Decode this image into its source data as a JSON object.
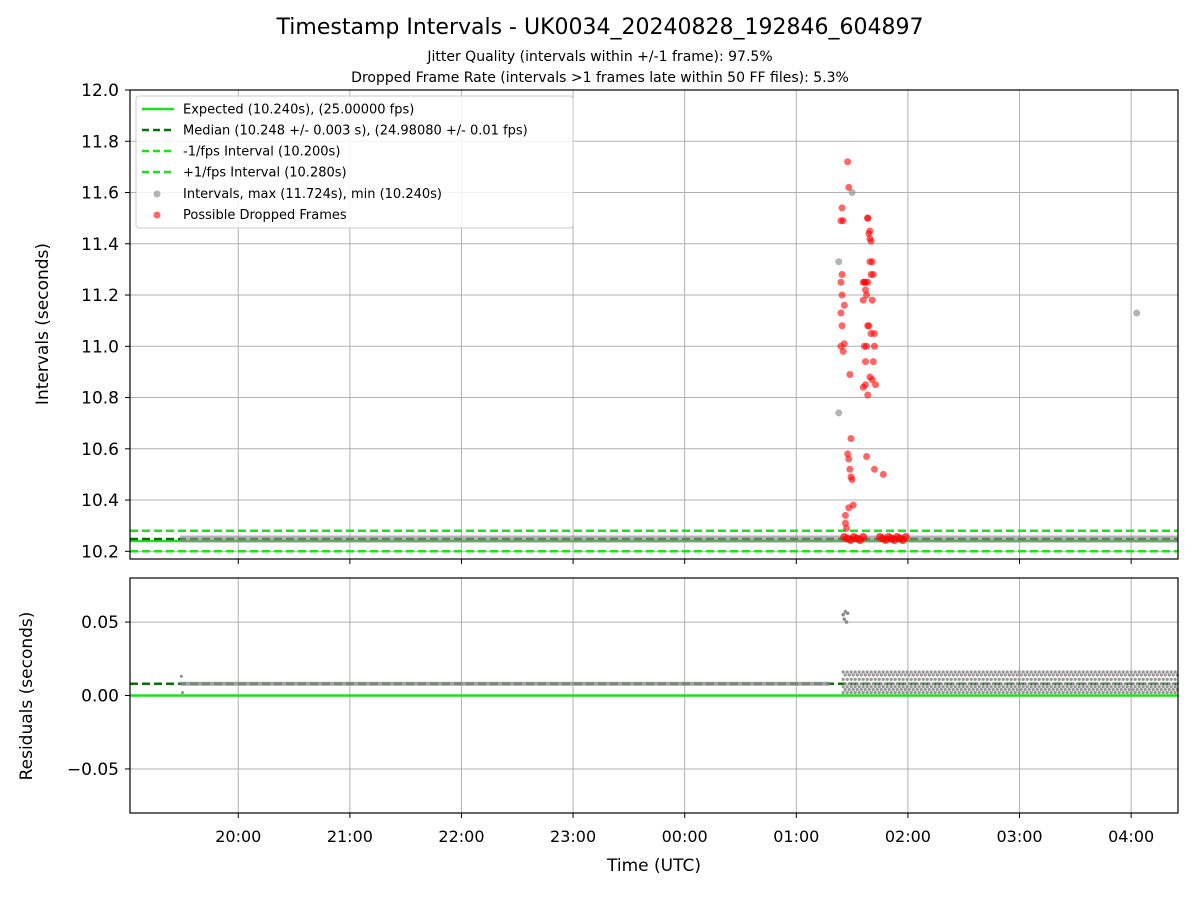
{
  "header": {
    "title": "Timestamp Intervals - UK0034_20240828_192846_604897",
    "subtitle1": "Jitter Quality (intervals within +/-1 frame): 97.5%",
    "subtitle2": "Dropped Frame Rate (intervals >1 frames late within 50 FF files): 5.3%"
  },
  "colors": {
    "expected": "#1ee11e",
    "median": "#0a6e0a",
    "fps_bounds": "#1ee11e",
    "intervals": "#8c8c8c",
    "dropped": "#ff0000",
    "grid": "#b0b0b0"
  },
  "chart_data": [
    {
      "type": "scatter",
      "panel": "intervals",
      "ylabel": "Intervals (seconds)",
      "ylim": [
        10.17,
        12.0
      ],
      "yticks": [
        "12.0",
        "11.8",
        "11.6",
        "11.4",
        "11.2",
        "11.0",
        "10.8",
        "10.6",
        "10.4",
        "10.2"
      ],
      "xlim_hours": [
        19.03,
        28.42
      ],
      "grid": true,
      "legend_position": "upper-left",
      "legend": [
        "Expected (10.240s), (25.00000 fps)",
        "Median (10.248 +/- 0.003 s), (24.98080 +/- 0.01 fps)",
        "-1/fps Interval (10.200s)",
        "+1/fps Interval (10.280s)",
        "Intervals, max (11.724s), min (10.240s)",
        "Possible Dropped Frames"
      ],
      "reference_lines": {
        "expected": 10.24,
        "median": 10.248,
        "minus_one_frame": 10.2,
        "plus_one_frame": 10.28
      },
      "series": [
        {
          "name": "Intervals, max (11.724s), min (10.240s)",
          "baseline": {
            "x_range": [
              19.48,
              28.42
            ],
            "y": 10.248
          },
          "outliers": [
            [
              25.38,
              11.33
            ],
            [
              25.38,
              10.74
            ],
            [
              28.05,
              11.13
            ],
            [
              25.5,
              11.6
            ]
          ]
        },
        {
          "name": "Possible Dropped Frames",
          "points": [
            [
              25.4,
              11.49
            ],
            [
              25.41,
              11.54
            ],
            [
              25.42,
              11.49
            ],
            [
              25.41,
              11.28
            ],
            [
              25.4,
              11.25
            ],
            [
              25.41,
              11.2
            ],
            [
              25.43,
              11.16
            ],
            [
              25.4,
              11.13
            ],
            [
              25.41,
              11.08
            ],
            [
              25.4,
              11.0
            ],
            [
              25.42,
              10.98
            ],
            [
              25.43,
              11.01
            ],
            [
              25.46,
              11.72
            ],
            [
              25.47,
              11.62
            ],
            [
              25.48,
              10.89
            ],
            [
              25.49,
              10.64
            ],
            [
              25.46,
              10.58
            ],
            [
              25.47,
              10.56
            ],
            [
              25.48,
              10.52
            ],
            [
              25.49,
              10.49
            ],
            [
              25.5,
              10.48
            ],
            [
              25.51,
              10.38
            ],
            [
              25.44,
              10.34
            ],
            [
              25.44,
              10.31
            ],
            [
              25.45,
              10.29
            ],
            [
              25.47,
              10.37
            ],
            [
              25.6,
              11.25
            ],
            [
              25.61,
              11.25
            ],
            [
              25.62,
              11.22
            ],
            [
              25.63,
              11.2
            ],
            [
              25.6,
              11.18
            ],
            [
              25.64,
              11.08
            ],
            [
              25.65,
              11.08
            ],
            [
              25.61,
              11.0
            ],
            [
              25.63,
              11.0
            ],
            [
              25.62,
              10.94
            ],
            [
              25.6,
              10.84
            ],
            [
              25.62,
              10.85
            ],
            [
              25.64,
              10.81
            ],
            [
              25.63,
              10.57
            ],
            [
              25.64,
              11.5
            ],
            [
              25.65,
              11.44
            ],
            [
              25.66,
              11.42
            ],
            [
              25.67,
              11.41
            ],
            [
              25.66,
              11.33
            ],
            [
              25.68,
              11.33
            ],
            [
              25.67,
              11.28
            ],
            [
              25.69,
              11.28
            ],
            [
              25.68,
              11.18
            ],
            [
              25.7,
              11.05
            ],
            [
              25.67,
              11.05
            ],
            [
              25.7,
              11.0
            ],
            [
              25.69,
              10.94
            ],
            [
              25.66,
              10.88
            ],
            [
              25.68,
              10.87
            ],
            [
              25.71,
              10.85
            ],
            [
              25.7,
              10.52
            ],
            [
              25.78,
              10.5
            ],
            [
              25.64,
              11.5
            ],
            [
              25.66,
              11.45
            ],
            [
              25.62,
              11.25
            ],
            [
              25.64,
              11.25
            ]
          ],
          "cluster_ranges": [
            [
              25.43,
              25.6,
              10.25
            ],
            [
              25.75,
              25.98,
              10.25
            ]
          ]
        }
      ]
    },
    {
      "type": "scatter",
      "panel": "residuals",
      "xlabel": "Time (UTC)",
      "ylabel": "Residuals (seconds)",
      "ylim": [
        -0.08,
        0.08
      ],
      "yticks": [
        "0.05",
        "0.00",
        "−0.05"
      ],
      "xticks": [
        "20:00",
        "21:00",
        "22:00",
        "23:00",
        "00:00",
        "01:00",
        "02:00",
        "03:00",
        "04:00"
      ],
      "xlim_hours": [
        19.03,
        28.42
      ],
      "grid": true,
      "reference_lines": {
        "expected": 0.0,
        "median": 0.008
      },
      "series": [
        {
          "name": "residuals",
          "steady": {
            "x_range": [
              19.48,
              25.3
            ],
            "y": 0.008
          },
          "spike": [
            [
              25.42,
              0.055
            ],
            [
              25.44,
              0.057
            ],
            [
              25.45,
              0.05
            ],
            [
              25.46,
              0.056
            ],
            [
              25.43,
              0.052
            ]
          ],
          "mixed": {
            "x_range": [
              25.42,
              28.42
            ],
            "values": [
              0.002,
              0.004,
              0.006,
              0.008,
              0.011,
              0.014,
              0.016
            ]
          }
        }
      ]
    }
  ]
}
